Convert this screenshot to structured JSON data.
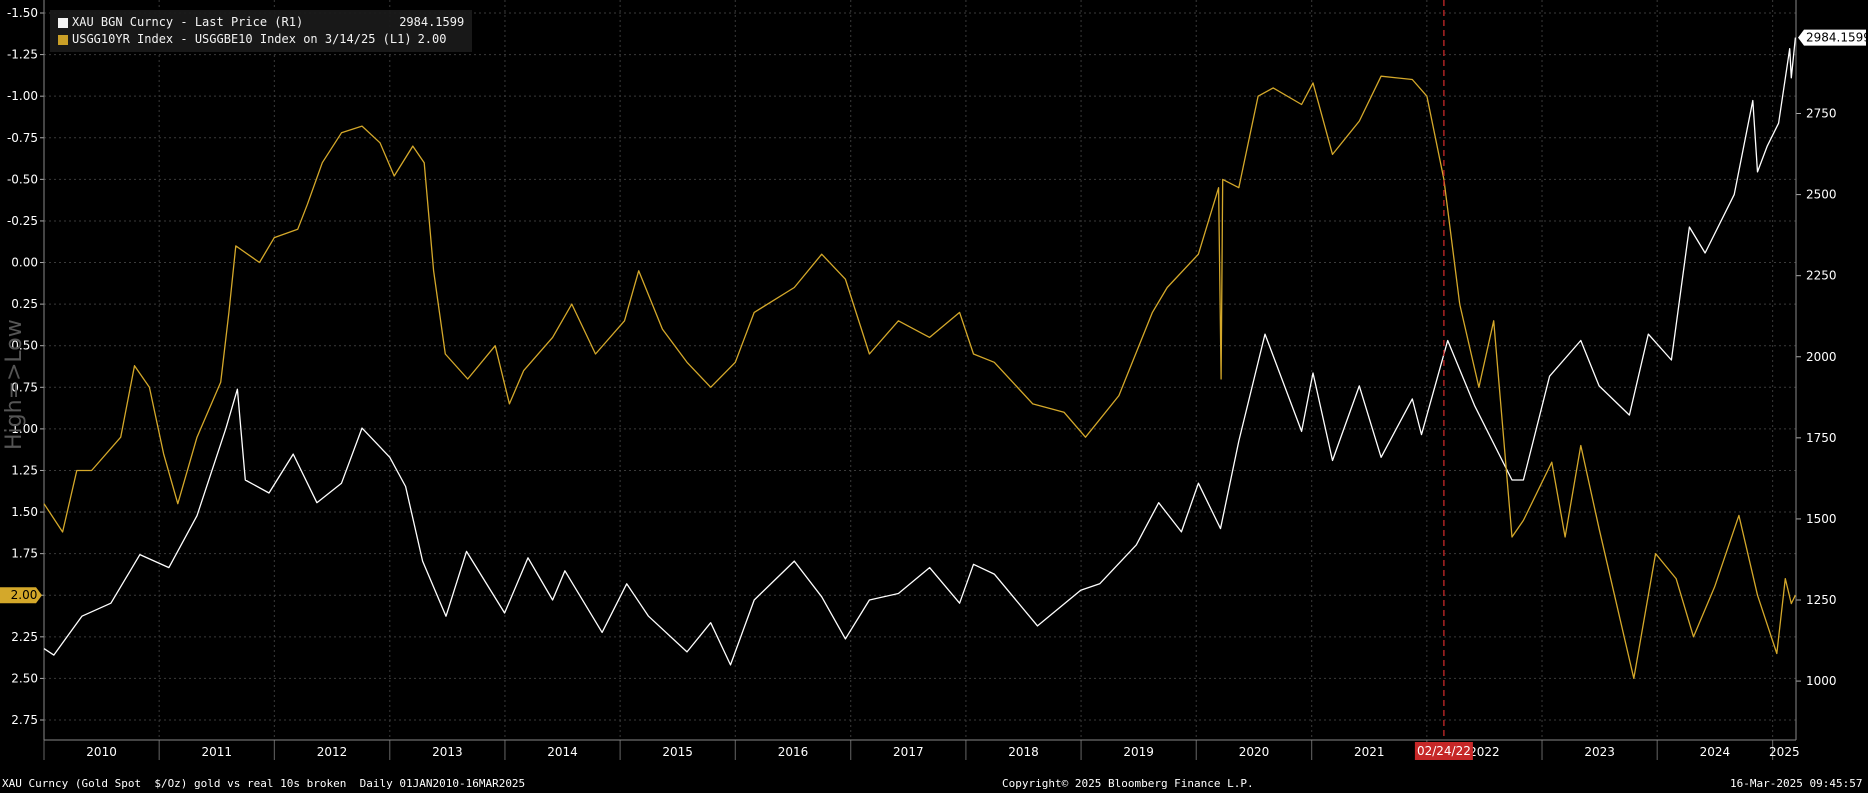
{
  "chart_data": {
    "type": "line",
    "vertical_marker": {
      "label": "02/24/22",
      "x": "2022-02-24",
      "color": "#c62828"
    },
    "last_value_labels": {
      "right": "2984.1599",
      "left": "2.00"
    },
    "left_axis": {
      "inverted": true,
      "ylim": [
        -1.5,
        2.75
      ],
      "ticks": [
        "-1.50",
        "-1.25",
        "-1.00",
        "-0.75",
        "-0.50",
        "-0.25",
        "0.00",
        "0.25",
        "0.50",
        "0.75",
        "1.00",
        "1.25",
        "1.50",
        "1.75",
        "2.00",
        "2.25",
        "2.50",
        "2.75"
      ],
      "side_label": "High=>Low"
    },
    "right_axis": {
      "ylim": [
        880,
        3100
      ],
      "ticks": [
        "1000",
        "1250",
        "1500",
        "1750",
        "2000",
        "2250",
        "2500",
        "2750"
      ]
    },
    "x_axis": {
      "range": [
        "2010-01-01",
        "2025-03-16"
      ],
      "year_labels": [
        "2010",
        "2011",
        "2012",
        "2013",
        "2014",
        "2015",
        "2016",
        "2017",
        "2018",
        "2019",
        "2020",
        "2021",
        "2022",
        "2023",
        "2024",
        "2025"
      ]
    },
    "grid": true,
    "legend_placement": "top-left",
    "series": [
      {
        "name": "XAU BGN Curncy - Last Price (R1)",
        "last_value": "2984.1599",
        "axis": "right",
        "color": "#ffffff",
        "points": [
          [
            "2010-01-01",
            1100
          ],
          [
            "2010-02-01",
            1080
          ],
          [
            "2010-05-01",
            1200
          ],
          [
            "2010-08-01",
            1240
          ],
          [
            "2010-11-01",
            1390
          ],
          [
            "2011-02-01",
            1350
          ],
          [
            "2011-05-01",
            1510
          ],
          [
            "2011-08-01",
            1780
          ],
          [
            "2011-09-06",
            1900
          ],
          [
            "2011-10-01",
            1620
          ],
          [
            "2011-12-15",
            1580
          ],
          [
            "2012-03-01",
            1700
          ],
          [
            "2012-05-15",
            1550
          ],
          [
            "2012-08-01",
            1610
          ],
          [
            "2012-10-05",
            1780
          ],
          [
            "2013-01-01",
            1690
          ],
          [
            "2013-02-20",
            1600
          ],
          [
            "2013-04-15",
            1370
          ],
          [
            "2013-06-28",
            1200
          ],
          [
            "2013-09-01",
            1400
          ],
          [
            "2013-12-31",
            1210
          ],
          [
            "2014-03-15",
            1380
          ],
          [
            "2014-06-01",
            1250
          ],
          [
            "2014-07-10",
            1340
          ],
          [
            "2014-11-05",
            1150
          ],
          [
            "2015-01-22",
            1300
          ],
          [
            "2015-04-01",
            1200
          ],
          [
            "2015-08-01",
            1090
          ],
          [
            "2015-10-15",
            1180
          ],
          [
            "2015-12-17",
            1050
          ],
          [
            "2016-03-01",
            1250
          ],
          [
            "2016-07-06",
            1370
          ],
          [
            "2016-10-01",
            1260
          ],
          [
            "2016-12-15",
            1130
          ],
          [
            "2017-03-01",
            1250
          ],
          [
            "2017-06-01",
            1270
          ],
          [
            "2017-09-08",
            1350
          ],
          [
            "2017-12-12",
            1240
          ],
          [
            "2018-01-25",
            1360
          ],
          [
            "2018-04-01",
            1330
          ],
          [
            "2018-08-16",
            1170
          ],
          [
            "2018-12-31",
            1280
          ],
          [
            "2019-03-01",
            1300
          ],
          [
            "2019-06-25",
            1420
          ],
          [
            "2019-09-04",
            1550
          ],
          [
            "2019-11-15",
            1460
          ],
          [
            "2020-01-08",
            1610
          ],
          [
            "2020-03-18",
            1470
          ],
          [
            "2020-05-15",
            1740
          ],
          [
            "2020-08-06",
            2070
          ],
          [
            "2020-11-30",
            1770
          ],
          [
            "2021-01-05",
            1950
          ],
          [
            "2021-03-08",
            1680
          ],
          [
            "2021-06-01",
            1910
          ],
          [
            "2021-08-09",
            1690
          ],
          [
            "2021-11-16",
            1870
          ],
          [
            "2021-12-15",
            1760
          ],
          [
            "2022-03-08",
            2050
          ],
          [
            "2022-06-01",
            1850
          ],
          [
            "2022-09-28",
            1620
          ],
          [
            "2022-11-03",
            1620
          ],
          [
            "2023-01-25",
            1940
          ],
          [
            "2023-05-04",
            2050
          ],
          [
            "2023-07-01",
            1910
          ],
          [
            "2023-10-05",
            1820
          ],
          [
            "2023-12-04",
            2070
          ],
          [
            "2024-02-15",
            1990
          ],
          [
            "2024-04-12",
            2400
          ],
          [
            "2024-06-01",
            2320
          ],
          [
            "2024-09-01",
            2500
          ],
          [
            "2024-10-30",
            2790
          ],
          [
            "2024-11-14",
            2570
          ],
          [
            "2024-12-15",
            2650
          ],
          [
            "2025-01-20",
            2720
          ],
          [
            "2025-02-24",
            2950
          ],
          [
            "2025-03-01",
            2860
          ],
          [
            "2025-03-14",
            2984.1599
          ]
        ]
      },
      {
        "name": "USGG10YR Index - USGGBE10 Index on 3/14/25 (L1)",
        "last_value": "2.00",
        "axis": "left",
        "color": "#d4a82a",
        "points": [
          [
            "2010-01-01",
            1.45
          ],
          [
            "2010-03-01",
            1.62
          ],
          [
            "2010-04-15",
            1.25
          ],
          [
            "2010-06-01",
            1.25
          ],
          [
            "2010-09-01",
            1.05
          ],
          [
            "2010-10-15",
            0.62
          ],
          [
            "2010-12-01",
            0.75
          ],
          [
            "2011-01-15",
            1.15
          ],
          [
            "2011-03-01",
            1.45
          ],
          [
            "2011-05-01",
            1.05
          ],
          [
            "2011-07-15",
            0.72
          ],
          [
            "2011-08-10",
            0.3
          ],
          [
            "2011-09-01",
            -0.1
          ],
          [
            "2011-11-15",
            0.0
          ],
          [
            "2012-01-01",
            -0.15
          ],
          [
            "2012-03-15",
            -0.2
          ],
          [
            "2012-04-15",
            -0.35
          ],
          [
            "2012-06-01",
            -0.6
          ],
          [
            "2012-08-01",
            -0.78
          ],
          [
            "2012-10-05",
            -0.82
          ],
          [
            "2012-12-01",
            -0.72
          ],
          [
            "2013-01-15",
            -0.52
          ],
          [
            "2013-03-15",
            -0.7
          ],
          [
            "2013-04-20",
            -0.6
          ],
          [
            "2013-05-20",
            0.05
          ],
          [
            "2013-06-26",
            0.55
          ],
          [
            "2013-09-05",
            0.7
          ],
          [
            "2013-12-01",
            0.5
          ],
          [
            "2014-01-15",
            0.85
          ],
          [
            "2014-03-01",
            0.65
          ],
          [
            "2014-06-01",
            0.45
          ],
          [
            "2014-08-01",
            0.25
          ],
          [
            "2014-10-15",
            0.55
          ],
          [
            "2015-01-15",
            0.35
          ],
          [
            "2015-03-01",
            0.05
          ],
          [
            "2015-05-15",
            0.4
          ],
          [
            "2015-08-01",
            0.6
          ],
          [
            "2015-10-15",
            0.75
          ],
          [
            "2016-01-01",
            0.6
          ],
          [
            "2016-03-01",
            0.3
          ],
          [
            "2016-07-06",
            0.15
          ],
          [
            "2016-10-01",
            -0.05
          ],
          [
            "2016-12-15",
            0.1
          ],
          [
            "2017-03-01",
            0.55
          ],
          [
            "2017-06-01",
            0.35
          ],
          [
            "2017-09-08",
            0.45
          ],
          [
            "2017-12-12",
            0.3
          ],
          [
            "2018-01-25",
            0.55
          ],
          [
            "2018-04-01",
            0.6
          ],
          [
            "2018-08-01",
            0.85
          ],
          [
            "2018-11-08",
            0.9
          ],
          [
            "2019-01-15",
            1.05
          ],
          [
            "2019-05-01",
            0.8
          ],
          [
            "2019-08-15",
            0.3
          ],
          [
            "2019-10-01",
            0.15
          ],
          [
            "2020-01-08",
            -0.05
          ],
          [
            "2020-03-12",
            -0.45
          ],
          [
            "2020-03-20",
            0.7
          ],
          [
            "2020-03-25",
            -0.5
          ],
          [
            "2020-05-15",
            -0.45
          ],
          [
            "2020-07-15",
            -1.0
          ],
          [
            "2020-09-01",
            -1.05
          ],
          [
            "2020-11-30",
            -0.95
          ],
          [
            "2021-01-05",
            -1.08
          ],
          [
            "2021-03-08",
            -0.65
          ],
          [
            "2021-06-01",
            -0.85
          ],
          [
            "2021-08-09",
            -1.12
          ],
          [
            "2021-11-16",
            -1.1
          ],
          [
            "2022-01-01",
            -1.0
          ],
          [
            "2022-02-24",
            -0.5
          ],
          [
            "2022-04-15",
            0.25
          ],
          [
            "2022-06-15",
            0.75
          ],
          [
            "2022-08-01",
            0.35
          ],
          [
            "2022-09-28",
            1.65
          ],
          [
            "2022-11-03",
            1.55
          ],
          [
            "2023-02-01",
            1.2
          ],
          [
            "2023-03-15",
            1.65
          ],
          [
            "2023-05-04",
            1.1
          ],
          [
            "2023-07-01",
            1.6
          ],
          [
            "2023-10-19",
            2.5
          ],
          [
            "2023-12-27",
            1.75
          ],
          [
            "2024-03-01",
            1.9
          ],
          [
            "2024-04-25",
            2.25
          ],
          [
            "2024-07-01",
            1.95
          ],
          [
            "2024-09-16",
            1.52
          ],
          [
            "2024-11-14",
            2.0
          ],
          [
            "2025-01-14",
            2.35
          ],
          [
            "2025-02-10",
            1.9
          ],
          [
            "2025-03-01",
            2.05
          ],
          [
            "2025-03-14",
            2.0
          ]
        ]
      }
    ]
  },
  "footer": {
    "left": "XAU Curncy (Gold Spot  $/Oz) gold vs real 10s broken  Daily 01JAN2010-16MAR2025",
    "center": "Copyright© 2025 Bloomberg Finance L.P.",
    "right": "16-Mar-2025 09:45:57"
  },
  "colors": {
    "background": "#000000",
    "grid": "#3a3a3a",
    "gold": "#d4a82a",
    "white": "#ffffff",
    "marker": "#c62828"
  }
}
